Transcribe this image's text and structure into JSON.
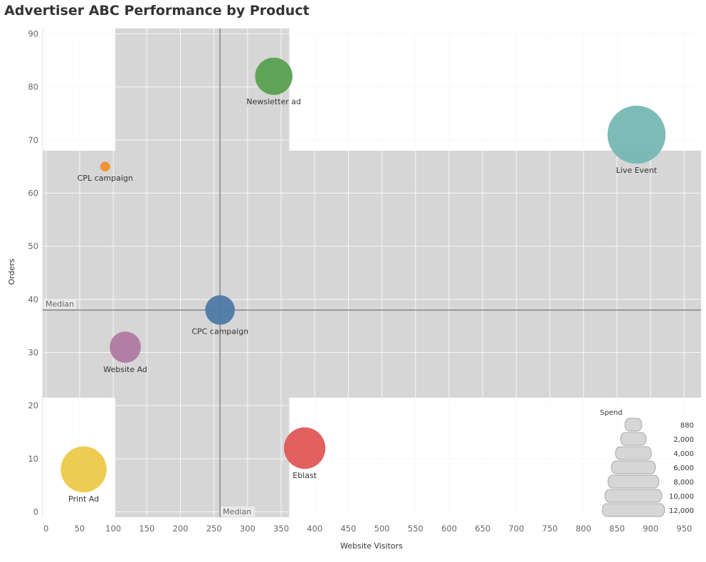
{
  "chart_data": {
    "type": "scatter",
    "title": "Advertiser ABC Performance by Product",
    "xlabel": "Website Visitors",
    "ylabel": "Orders",
    "xlim": [
      -5,
      975
    ],
    "ylim": [
      -1,
      91
    ],
    "x_ticks": [
      0,
      50,
      100,
      150,
      200,
      250,
      300,
      350,
      400,
      450,
      500,
      550,
      600,
      650,
      700,
      750,
      800,
      850,
      900,
      950
    ],
    "y_ticks": [
      0,
      10,
      20,
      30,
      40,
      50,
      60,
      70,
      80,
      90
    ],
    "grid": true,
    "points": [
      {
        "label": "Newsletter ad",
        "x": 339,
        "y": 82,
        "spend": 4300,
        "color": "#59a14f"
      },
      {
        "label": "Live Event",
        "x": 879,
        "y": 71,
        "spend": 10400,
        "color": "#76b7b2"
      },
      {
        "label": "CPL campaign",
        "x": 88,
        "y": 65,
        "spend": 300,
        "color": "#f28e2b"
      },
      {
        "label": "CPC campaign",
        "x": 259,
        "y": 38,
        "spend": 2700,
        "color": "#4e79a7"
      },
      {
        "label": "Website Ad",
        "x": 118,
        "y": 31,
        "spend": 3000,
        "color": "#b07aa1"
      },
      {
        "label": "Eblast",
        "x": 385,
        "y": 12,
        "spend": 5300,
        "color": "#e15759"
      },
      {
        "label": "Print Ad",
        "x": 56,
        "y": 8,
        "spend": 6500,
        "color": "#edc948"
      }
    ],
    "median_x": 259,
    "median_y": 38,
    "median_label": "Median",
    "bands": {
      "x_range": [
        103,
        362
      ],
      "y_range": [
        21.5,
        68
      ]
    },
    "size_legend": {
      "title": "Spend",
      "values": [
        880,
        2000,
        4000,
        6000,
        8000,
        10000,
        12000
      ],
      "labels": [
        "880",
        "2,000",
        "4,000",
        "6,000",
        "8,000",
        "10,000",
        "12,000"
      ],
      "placement": "bottom-right"
    }
  }
}
